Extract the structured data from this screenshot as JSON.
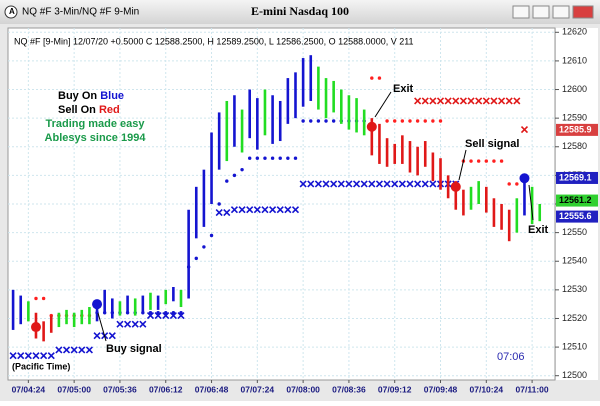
{
  "window_title": "NQ #F 3-Min/NQ #F 9-Min",
  "chart_data": {
    "type": "ohlc",
    "title": "E-mini Nasdaq 100",
    "info_line": "NQ #F [9-Min] 12/07/20 +0.5000 C 12588.2500, H 12589.2500, L 12586.2500, O 12588.0000, V 211",
    "x": [
      252,
      258,
      264,
      270,
      276,
      282,
      288,
      294,
      300,
      306,
      312,
      318,
      324,
      330,
      336,
      342,
      348,
      354,
      360,
      366,
      372,
      378,
      384,
      390,
      396,
      402,
      408,
      414,
      420,
      426,
      432,
      438,
      444,
      450,
      456,
      462,
      468,
      474,
      480,
      486,
      492,
      498,
      504,
      510,
      516,
      522,
      528,
      534,
      540,
      546,
      552,
      558,
      564,
      570,
      576,
      582,
      588,
      594,
      600,
      606,
      612,
      618,
      624,
      630,
      636,
      642,
      648,
      654,
      660,
      666
    ],
    "high": [
      12530,
      12528,
      12526,
      12522,
      12519,
      12521,
      12522,
      12523,
      12522,
      12523,
      12524,
      12526,
      12530,
      12527,
      12526,
      12528,
      12527,
      12528,
      12529,
      12528,
      12530,
      12531,
      12530,
      12558,
      12566,
      12572,
      12585,
      12592,
      12596,
      12598,
      12593,
      12600,
      12597,
      12600,
      12598,
      12596,
      12604,
      12606,
      12611,
      12612,
      12608,
      12604,
      12603,
      12600,
      12598,
      12597,
      12593,
      12590,
      12588,
      12583,
      12581,
      12584,
      12582,
      12580,
      12582,
      12578,
      12576,
      12570,
      12568,
      12565,
      12566,
      12568,
      12566,
      12562,
      12560,
      12558,
      12562,
      12570,
      12566,
      12560
    ],
    "low": [
      12516,
      12518,
      12519,
      12513,
      12512,
      12515,
      12517,
      12518,
      12517,
      12518,
      12518,
      12519,
      12522,
      12520,
      12521,
      12522,
      12521,
      12522,
      12523,
      12523,
      12525,
      12526,
      12524,
      12527,
      12548,
      12552,
      12560,
      12572,
      12575,
      12580,
      12578,
      12583,
      12579,
      12584,
      12581,
      12582,
      12588,
      12590,
      12594,
      12596,
      12593,
      12590,
      12592,
      12588,
      12586,
      12585,
      12584,
      12577,
      12574,
      12573,
      12574,
      12574,
      12571,
      12570,
      12573,
      12568,
      12565,
      12562,
      12558,
      12556,
      12558,
      12560,
      12557,
      12552,
      12551,
      12547,
      12550,
      12556,
      12553,
      12554
    ],
    "bar_colors": [
      "#1414d0",
      "#1414d0",
      "#22dd22",
      "#e01818",
      "#e01818",
      "#e01818",
      "#22dd22",
      "#22dd22",
      "#22dd22",
      "#22dd22",
      "#22dd22",
      "#1414d0",
      "#1414d0",
      "#1414d0",
      "#22dd22",
      "#1414d0",
      "#22dd22",
      "#1414d0",
      "#22dd22",
      "#1414d0",
      "#22dd22",
      "#1414d0",
      "#22dd22",
      "#1414d0",
      "#1414d0",
      "#1414d0",
      "#1414d0",
      "#1414d0",
      "#22dd22",
      "#1414d0",
      "#22dd22",
      "#1414d0",
      "#1414d0",
      "#22dd22",
      "#1414d0",
      "#1414d0",
      "#1414d0",
      "#1414d0",
      "#1414d0",
      "#1414d0",
      "#22dd22",
      "#22dd22",
      "#22dd22",
      "#22dd22",
      "#22dd22",
      "#22dd22",
      "#22dd22",
      "#e01818",
      "#e01818",
      "#e01818",
      "#e01818",
      "#e01818",
      "#e01818",
      "#e01818",
      "#e01818",
      "#e01818",
      "#e01818",
      "#e01818",
      "#e01818",
      "#e01818",
      "#22dd22",
      "#22dd22",
      "#e01818",
      "#e01818",
      "#e01818",
      "#e01818",
      "#22dd22",
      "#1414d0",
      "#22dd22",
      "#22dd22"
    ],
    "series": [
      {
        "color": "#1414d0",
        "marker": "dot",
        "values": [
          null,
          null,
          null,
          null,
          null,
          null,
          null,
          null,
          null,
          null,
          null,
          12522,
          12522,
          12522,
          12522,
          12522,
          12522,
          12522,
          12522,
          12522,
          12522,
          12522,
          12522,
          12538,
          12541,
          12545,
          12549,
          12560,
          12568,
          12570,
          12572,
          12576,
          12576,
          12576,
          12576,
          12576,
          12576,
          12576,
          12589,
          12589,
          12589,
          12589,
          12589,
          12589,
          12589,
          12589,
          12589,
          null,
          null,
          null,
          null,
          null,
          null,
          null,
          null,
          null,
          null,
          null,
          null,
          null,
          null,
          null,
          null,
          null,
          null,
          null,
          null,
          null,
          null,
          null
        ]
      },
      {
        "color": "#1414d0",
        "marker": "cross",
        "values": [
          12507,
          12507,
          12507,
          12507,
          12507,
          12507,
          12509,
          12509,
          12509,
          12509,
          12509,
          12514,
          12514,
          12514,
          12518,
          12518,
          12518,
          12518,
          12521,
          12521,
          12521,
          12521,
          12521,
          null,
          null,
          null,
          null,
          12557,
          12557,
          12558,
          12558,
          12558,
          12558,
          12558,
          12558,
          12558,
          12558,
          12558,
          12567,
          12567,
          12567,
          12567,
          12567,
          12567,
          12567,
          12567,
          12567,
          12567,
          12567,
          12567,
          12567,
          12567,
          12567,
          12567,
          12567,
          12567,
          12567,
          12567,
          12567,
          null,
          null,
          null,
          null,
          null,
          null,
          null,
          null,
          null,
          null,
          null
        ]
      },
      {
        "color": "#ff2020",
        "marker": "dot",
        "values": [
          null,
          null,
          null,
          12527,
          12527,
          12521,
          12521,
          12521,
          12521,
          12521,
          12521,
          null,
          null,
          null,
          null,
          null,
          null,
          null,
          null,
          null,
          null,
          null,
          null,
          null,
          null,
          null,
          null,
          null,
          null,
          null,
          null,
          null,
          null,
          null,
          null,
          null,
          null,
          null,
          null,
          null,
          null,
          null,
          null,
          null,
          null,
          null,
          null,
          12604,
          12604,
          12589,
          12589,
          12589,
          12589,
          12589,
          12589,
          12589,
          12589,
          null,
          null,
          12575,
          12575,
          12575,
          12575,
          12575,
          12575,
          12567,
          12567,
          null,
          null,
          null
        ]
      },
      {
        "color": "#e01818",
        "marker": "cross",
        "values": [
          null,
          null,
          null,
          null,
          null,
          null,
          null,
          null,
          null,
          null,
          null,
          null,
          null,
          null,
          null,
          null,
          null,
          null,
          null,
          null,
          null,
          null,
          null,
          null,
          null,
          null,
          null,
          null,
          null,
          null,
          null,
          null,
          null,
          null,
          null,
          null,
          null,
          null,
          null,
          null,
          null,
          null,
          null,
          null,
          null,
          null,
          null,
          null,
          null,
          null,
          null,
          null,
          null,
          12596,
          12596,
          12596,
          12596,
          12596,
          12596,
          12596,
          12596,
          12596,
          12596,
          12596,
          12596,
          12596,
          12596,
          12586,
          null,
          null
        ]
      }
    ],
    "signals": [
      {
        "x": 270,
        "value": 12517,
        "color": "#e01818"
      },
      {
        "x": 318,
        "value": 12525,
        "color": "#1414d0"
      },
      {
        "x": 534,
        "value": 12587,
        "color": "#e01818"
      },
      {
        "x": 600,
        "value": 12566,
        "color": "#e01818"
      },
      {
        "x": 654,
        "value": 12569,
        "color": "#1414d0"
      }
    ],
    "price_markers": [
      {
        "value": 12585.9,
        "color": "#d84040",
        "text_color": "#ffffff"
      },
      {
        "value": 12569.1,
        "color": "#2020c0",
        "text_color": "#ffffff"
      },
      {
        "value": 12561.2,
        "color": "#30d030",
        "text_color": "#000000"
      },
      {
        "value": 12555.6,
        "color": "#2020c0",
        "text_color": "#ffffff"
      }
    ],
    "xlim": [
      248,
      678
    ],
    "xticks": [
      {
        "value": 264,
        "label": "07/04:24"
      },
      {
        "value": 300,
        "label": "07/05:00"
      },
      {
        "value": 336,
        "label": "07/05:36"
      },
      {
        "value": 372,
        "label": "07/06:12"
      },
      {
        "value": 408,
        "label": "07/06:48"
      },
      {
        "value": 444,
        "label": "07/07:24"
      },
      {
        "value": 480,
        "label": "07/08:00"
      },
      {
        "value": 516,
        "label": "07/08:36"
      },
      {
        "value": 552,
        "label": "07/09:12"
      },
      {
        "value": 588,
        "label": "07/09:48"
      },
      {
        "value": 624,
        "label": "07/10:24"
      },
      {
        "value": 660,
        "label": "07/11:00"
      }
    ],
    "ylim": [
      12498.5,
      12621.5
    ],
    "yticks": [
      12500,
      12510,
      12520,
      12530,
      12540,
      12550,
      12560,
      12570,
      12580,
      12590,
      12600,
      12610,
      12620
    ],
    "grid": true,
    "annotations": {
      "buy_on": "Buy On",
      "blue": "Blue",
      "sell_on": "Sell On",
      "red": "Red",
      "tagline": "Trading made easy",
      "company": "Ablesys since 1994",
      "buy_signal": "Buy signal",
      "exit_1": "Exit",
      "sell_signal": "Sell signal",
      "exit_2": "Exit",
      "timezone": "(Pacific Time)",
      "clock": "07:06"
    }
  }
}
